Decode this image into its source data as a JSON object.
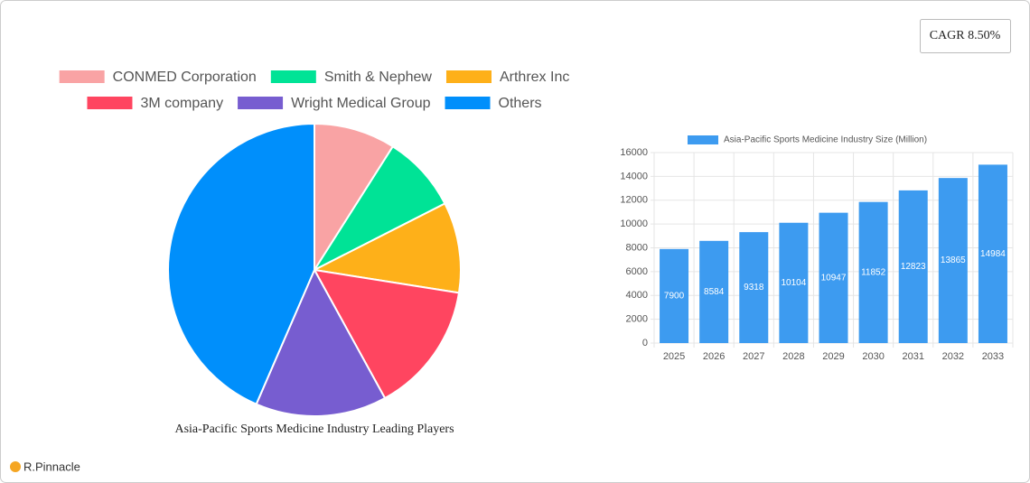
{
  "badge": "CAGR 8.50%",
  "brand": "R.Pinnacle",
  "chart_data": [
    {
      "type": "pie",
      "title": "Asia-Pacific Sports Medicine Industry Leading Players",
      "categories": [
        "CONMED Corporation",
        "Smith & Nephew",
        "Arthrex Inc",
        "3M company",
        "Wright Medical Group",
        "Others"
      ],
      "values": [
        9,
        8.5,
        10,
        14.5,
        14.5,
        43.5
      ],
      "colors": [
        "#f9a3a4",
        "#00e396",
        "#feb019",
        "#ff4560",
        "#775dd0",
        "#008ffb"
      ],
      "legend": "top"
    },
    {
      "type": "bar",
      "categories": [
        "2025",
        "2026",
        "2027",
        "2028",
        "2029",
        "2030",
        "2031",
        "2032",
        "2033"
      ],
      "series": [
        {
          "name": "Asia-Pacific Sports Medicine Industry Size (Million)",
          "color": "#3d9bf0",
          "values": [
            7900,
            8584,
            9318,
            10104,
            10947,
            11852,
            12823,
            13865,
            14984
          ]
        }
      ],
      "ylim": [
        0,
        16000
      ],
      "yticks": [
        0,
        2000,
        4000,
        6000,
        8000,
        10000,
        12000,
        14000,
        16000
      ],
      "grid": true,
      "legend": "top"
    }
  ]
}
